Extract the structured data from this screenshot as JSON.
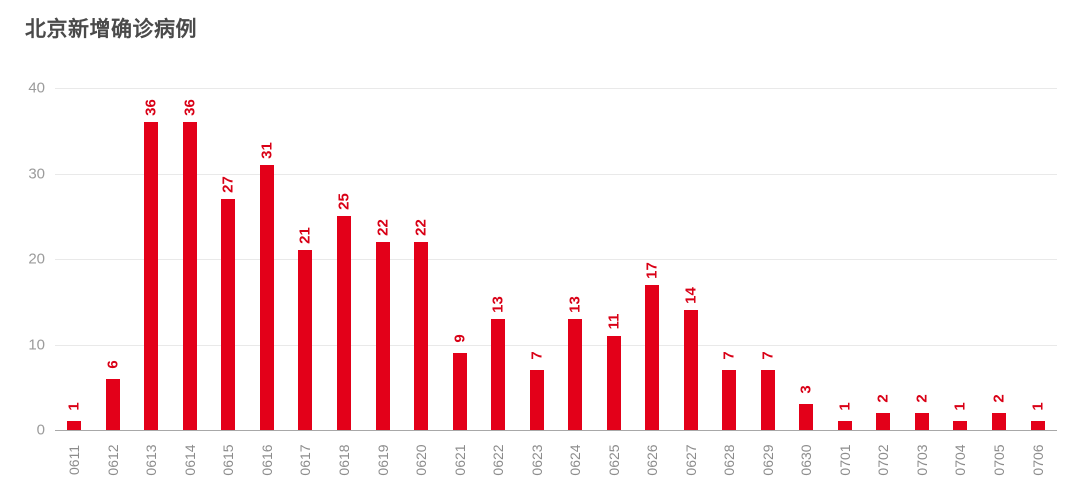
{
  "title": "北京新增确诊病例",
  "colors": {
    "bar": "#e30019",
    "value_label": "#d90016",
    "title": "#4a4a4a",
    "y_tick": "#9b9b9b",
    "x_tick": "#8c8c8c",
    "gridline": "#e9e9e9",
    "axis_line": "#a8a8a8",
    "background": "#ffffff"
  },
  "chart_data": {
    "type": "bar",
    "title": "北京新增确诊病例",
    "xlabel": "",
    "ylabel": "",
    "categories": [
      "0611",
      "0612",
      "0613",
      "0614",
      "0615",
      "0616",
      "0617",
      "0618",
      "0619",
      "0620",
      "0621",
      "0622",
      "0623",
      "0624",
      "0625",
      "0626",
      "0627",
      "0628",
      "0629",
      "0630",
      "0701",
      "0702",
      "0703",
      "0704",
      "0705",
      "0706"
    ],
    "values": [
      1,
      6,
      36,
      36,
      27,
      31,
      21,
      25,
      22,
      22,
      9,
      13,
      7,
      13,
      11,
      17,
      14,
      7,
      7,
      3,
      1,
      2,
      2,
      1,
      2,
      1
    ],
    "ylim": [
      0,
      40
    ],
    "yticks": [
      40,
      30,
      20,
      10,
      0
    ],
    "grid": true,
    "legend": false,
    "bar_labels_rotated": true,
    "x_labels_rotated": true
  }
}
